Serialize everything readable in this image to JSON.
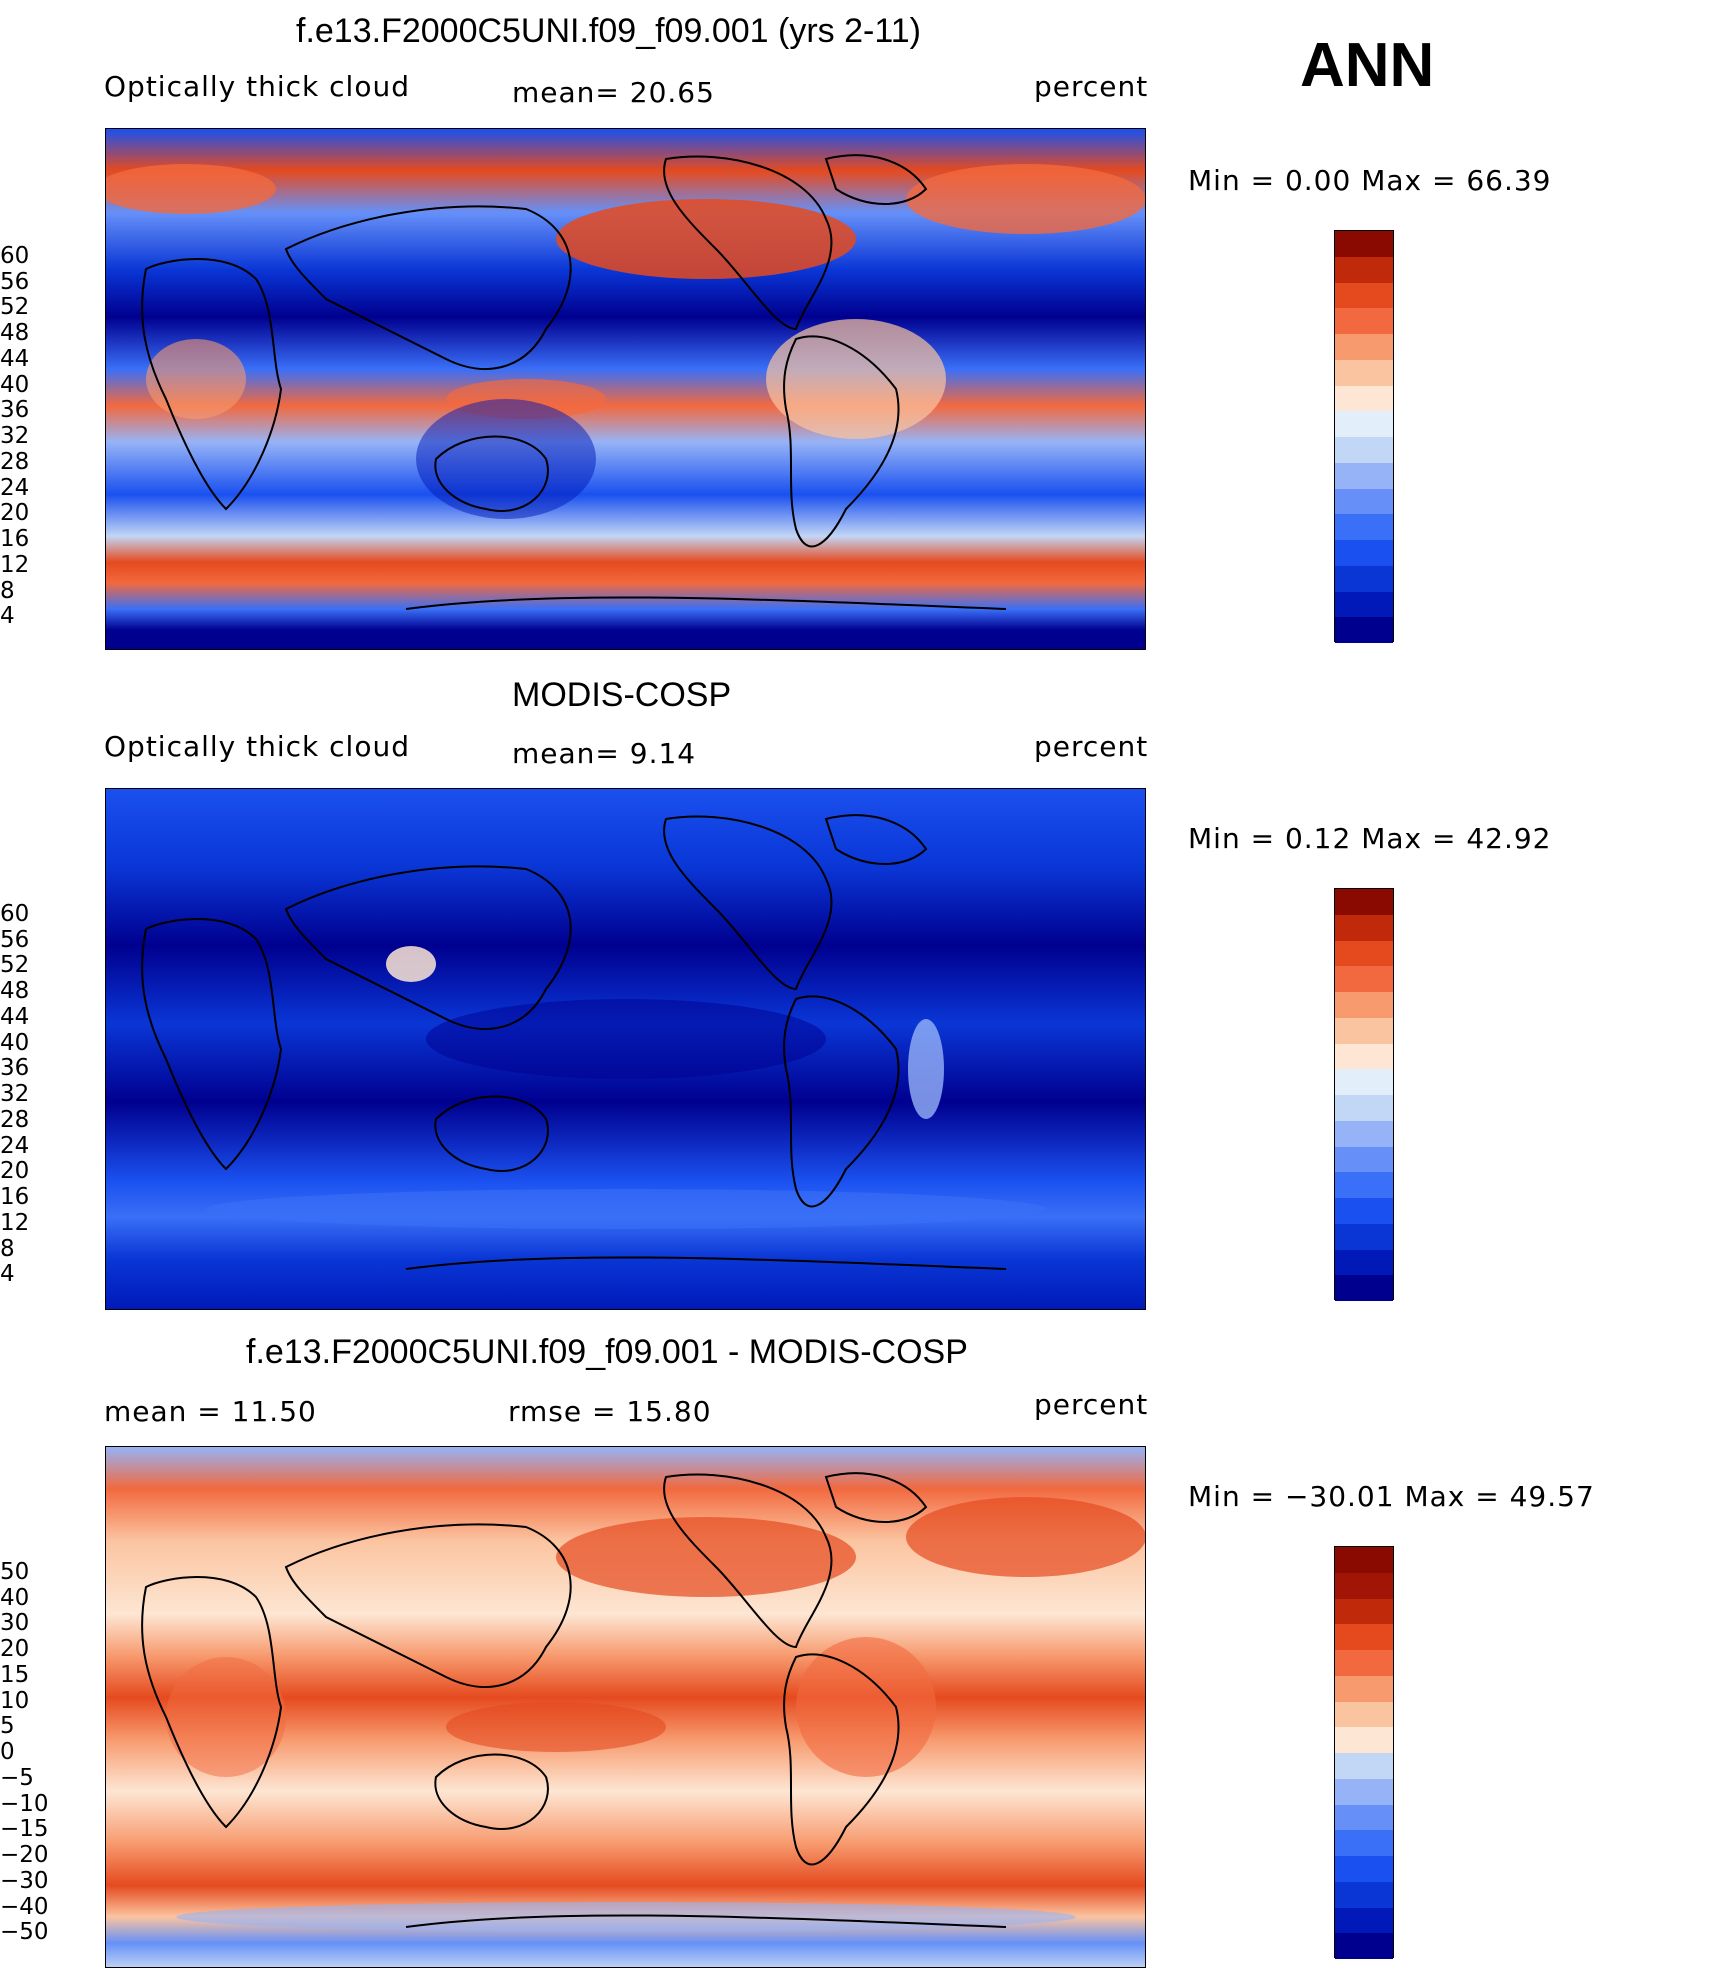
{
  "header": {
    "season": "ANN"
  },
  "panels": [
    {
      "title": "f.e13.F2000C5UNI.f09_f09.001 (yrs 2-11)",
      "left_label": "Optically  thick  cloud",
      "mid_label": "mean=   20.65",
      "right_label": "percent",
      "minmax": "Min  =     0.00  Max  =    66.39",
      "kind": "model"
    },
    {
      "title": "MODIS-COSP",
      "left_label": "Optically  thick  cloud",
      "mid_label": "mean=     9.14",
      "right_label": "percent",
      "minmax": "Min  =     0.12  Max  =    42.92",
      "kind": "obs"
    },
    {
      "title": "f.e13.F2000C5UNI.f09_f09.001 - MODIS-COSP",
      "left_label": "mean  =     11.50",
      "mid_label": "rmse  =     15.80",
      "right_label": "percent",
      "minmax": "Min  = −30.01  Max  =    49.57",
      "kind": "diff"
    }
  ],
  "chart_data": [
    {
      "type": "heatmap",
      "title": "f.e13.F2000C5UNI.f09_f09.001 (yrs 2-11)",
      "variable": "Optically thick cloud",
      "units": "percent",
      "mean": 20.65,
      "min": 0.0,
      "max": 66.39,
      "colorbar_levels": [
        4,
        8,
        12,
        16,
        20,
        24,
        28,
        32,
        36,
        40,
        44,
        48,
        52,
        56,
        60
      ],
      "colorbar_colors": [
        "#00008f",
        "#0019b8",
        "#0a36d6",
        "#1a50ef",
        "#3a6ff7",
        "#6690f8",
        "#96b3f7",
        "#c2d6f5",
        "#e2eefa",
        "#fde6d3",
        "#fbc4a0",
        "#f79a6e",
        "#f2693f",
        "#e54a1f",
        "#c02a0a",
        "#8a0a02"
      ]
    },
    {
      "type": "heatmap",
      "title": "MODIS-COSP",
      "variable": "Optically thick cloud",
      "units": "percent",
      "mean": 9.14,
      "min": 0.12,
      "max": 42.92,
      "colorbar_levels": [
        4,
        8,
        12,
        16,
        20,
        24,
        28,
        32,
        36,
        40,
        44,
        48,
        52,
        56,
        60
      ],
      "colorbar_colors": [
        "#00008f",
        "#0019b8",
        "#0a36d6",
        "#1a50ef",
        "#3a6ff7",
        "#6690f8",
        "#96b3f7",
        "#c2d6f5",
        "#e2eefa",
        "#fde6d3",
        "#fbc4a0",
        "#f79a6e",
        "#f2693f",
        "#e54a1f",
        "#c02a0a",
        "#8a0a02"
      ]
    },
    {
      "type": "heatmap",
      "title": "f.e13.F2000C5UNI.f09_f09.001 - MODIS-COSP",
      "units": "percent",
      "mean": 11.5,
      "rmse": 15.8,
      "min": -30.01,
      "max": 49.57,
      "colorbar_levels": [
        -50,
        -40,
        -30,
        -20,
        -15,
        -10,
        -5,
        0,
        5,
        10,
        15,
        20,
        30,
        40,
        50
      ],
      "colorbar_labels": [
        "−50",
        "−40",
        "−30",
        "−20",
        "−15",
        "−10",
        "−5",
        "0",
        "5",
        "10",
        "15",
        "20",
        "30",
        "40",
        "50"
      ],
      "colorbar_colors": [
        "#00008f",
        "#0019b8",
        "#0a36d6",
        "#1a50ef",
        "#3a6ff7",
        "#6690f8",
        "#96b3f7",
        "#c2d6f5",
        "#fde6d3",
        "#fbc4a0",
        "#f79a6e",
        "#f2693f",
        "#e54a1f",
        "#c02a0a",
        "#a01506",
        "#8a0a02"
      ]
    }
  ]
}
